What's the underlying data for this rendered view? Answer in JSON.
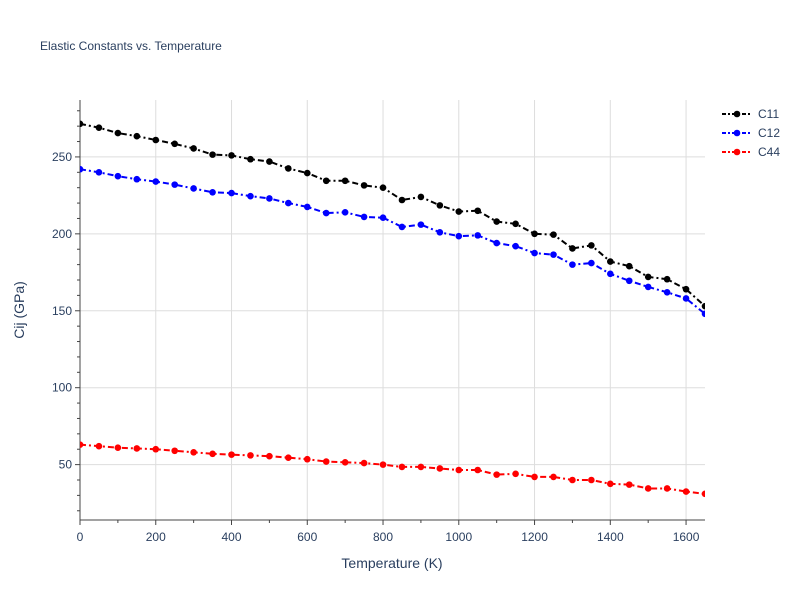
{
  "chart_data": {
    "type": "line",
    "title": "Elastic Constants vs. Temperature",
    "xlabel": "Temperature (K)",
    "ylabel": "Cij (GPa)",
    "xlim": [
      0,
      1650
    ],
    "ylim": [
      14,
      287
    ],
    "xticks": [
      0,
      200,
      400,
      600,
      800,
      1000,
      1200,
      1400,
      1600
    ],
    "yticks": [
      50,
      100,
      150,
      200,
      250
    ],
    "x": [
      0,
      50,
      100,
      150,
      200,
      250,
      300,
      350,
      400,
      450,
      500,
      550,
      600,
      650,
      700,
      750,
      800,
      850,
      900,
      950,
      1000,
      1050,
      1100,
      1150,
      1200,
      1250,
      1300,
      1350,
      1400,
      1450,
      1500,
      1550,
      1600,
      1650
    ],
    "grid": true,
    "legend_position": "top-right",
    "series": [
      {
        "name": "C11",
        "color": "#000000",
        "values": [
          271.5,
          269,
          265.5,
          263.5,
          261,
          258.5,
          255.5,
          251.5,
          251,
          248.5,
          247,
          242.5,
          239.5,
          234.5,
          234.5,
          231.5,
          230,
          222,
          224,
          218.5,
          214.5,
          215,
          208,
          206.5,
          200,
          199.5,
          190.5,
          192.5,
          182,
          179,
          172,
          170.5,
          164,
          153
        ]
      },
      {
        "name": "C12",
        "color": "#0000ff",
        "values": [
          242,
          240,
          237.5,
          235.5,
          234,
          232,
          229.5,
          227,
          226.5,
          224.5,
          223,
          220,
          217.5,
          213.5,
          214,
          211,
          210.5,
          204.5,
          206,
          201,
          198.5,
          199,
          194,
          192,
          187.5,
          186.5,
          180,
          181,
          174,
          169.5,
          165.5,
          162,
          158,
          148
        ]
      },
      {
        "name": "C44",
        "color": "#ff0000",
        "values": [
          63,
          62,
          61,
          60.5,
          60,
          59,
          58,
          57,
          56.5,
          56,
          55.5,
          54.5,
          53.5,
          52,
          51.5,
          51,
          50,
          48.5,
          48.5,
          47.5,
          46.5,
          46.5,
          43.5,
          44,
          42,
          42,
          40,
          40,
          37.5,
          37,
          34.5,
          34.5,
          32.5,
          31
        ]
      }
    ]
  }
}
